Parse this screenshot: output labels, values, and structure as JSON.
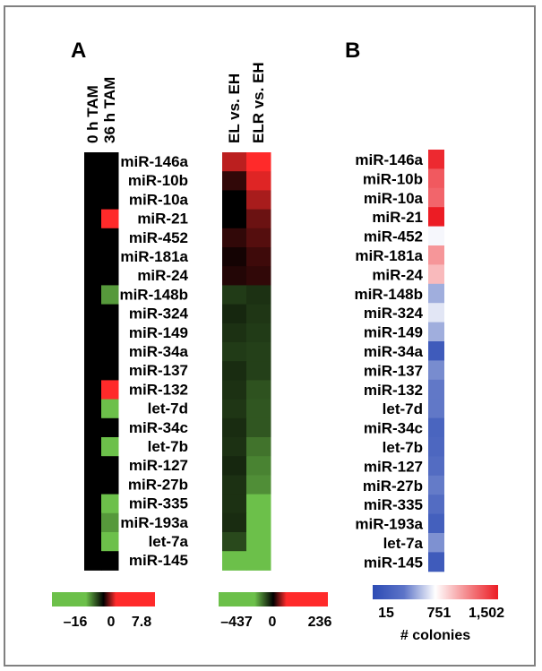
{
  "chart_data": [
    {
      "panel": "A",
      "type": "heatmap",
      "columns": [
        "0 h TAM",
        "36 h TAM"
      ],
      "rows": [
        "miR-146a",
        "miR-10b",
        "miR-10a",
        "miR-21",
        "miR-452",
        "miR-181a",
        "miR-24",
        "miR-148b",
        "miR-324",
        "miR-149",
        "miR-34a",
        "miR-137",
        "miR-132",
        "let-7d",
        "miR-34c",
        "let-7b",
        "miR-127",
        "miR-27b",
        "miR-335",
        "miR-193a",
        "let-7a",
        "miR-145"
      ],
      "values": [
        [
          0,
          0
        ],
        [
          0,
          0
        ],
        [
          0,
          0
        ],
        [
          0,
          7.8
        ],
        [
          0,
          0
        ],
        [
          0,
          0
        ],
        [
          0,
          0
        ],
        [
          0,
          -12
        ],
        [
          0,
          0
        ],
        [
          0,
          0
        ],
        [
          0,
          0
        ],
        [
          0,
          0
        ],
        [
          0,
          7.8
        ],
        [
          0,
          -16
        ],
        [
          0,
          0
        ],
        [
          0,
          -16
        ],
        [
          0,
          0
        ],
        [
          0,
          0
        ],
        [
          0,
          -16
        ],
        [
          0,
          -12
        ],
        [
          0,
          -16
        ],
        [
          0,
          0
        ]
      ],
      "colorbar": {
        "min": -16,
        "mid": 0,
        "max": 7.8,
        "tick_labels": [
          "–16",
          "0",
          "7.8"
        ],
        "colors": [
          "#6cc04a",
          "#000000",
          "#ff2a2a"
        ]
      }
    },
    {
      "panel": "A",
      "type": "heatmap",
      "columns": [
        "EL vs. EH",
        "ELR vs. EH"
      ],
      "values": [
        [
          160,
          236
        ],
        [
          30,
          200
        ],
        [
          0,
          140
        ],
        [
          0,
          80
        ],
        [
          30,
          60
        ],
        [
          10,
          40
        ],
        [
          20,
          30
        ],
        [
          -100,
          -80
        ],
        [
          -60,
          -90
        ],
        [
          -80,
          -100
        ],
        [
          -100,
          -110
        ],
        [
          -70,
          -110
        ],
        [
          -80,
          -150
        ],
        [
          -90,
          -160
        ],
        [
          -70,
          -160
        ],
        [
          -80,
          -230
        ],
        [
          -60,
          -270
        ],
        [
          -80,
          -300
        ],
        [
          -80,
          -437
        ],
        [
          -70,
          -437
        ],
        [
          -130,
          -437
        ],
        [
          -437,
          -437
        ]
      ],
      "colorbar": {
        "min": -437,
        "mid": 0,
        "max": 236,
        "tick_labels": [
          "–437",
          "0",
          "236"
        ],
        "colors": [
          "#6cc04a",
          "#000000",
          "#ff2a2a"
        ]
      }
    },
    {
      "panel": "B",
      "type": "heatmap",
      "columns": [],
      "rows": [
        "miR-146a",
        "miR-10b",
        "miR-10a",
        "miR-21",
        "miR-452",
        "miR-181a",
        "miR-24",
        "miR-148b",
        "miR-324",
        "miR-149",
        "miR-34a",
        "miR-137",
        "miR-132",
        "let-7d",
        "miR-34c",
        "let-7b",
        "miR-127",
        "miR-27b",
        "miR-335",
        "miR-193a",
        "let-7a",
        "miR-145"
      ],
      "values": [
        1460,
        1300,
        1260,
        1502,
        720,
        1100,
        980,
        420,
        650,
        420,
        80,
        280,
        200,
        200,
        120,
        130,
        150,
        210,
        150,
        100,
        300,
        80
      ],
      "colorbar": {
        "min": 15,
        "mid": 751,
        "max": 1502,
        "tick_labels": [
          "15",
          "751",
          "1,502"
        ],
        "label": "# colonies",
        "colors": [
          "#2c4bb4",
          "#ffffff",
          "#ec1c24"
        ]
      }
    }
  ],
  "panel_labels": {
    "a": "A",
    "b": "B"
  }
}
